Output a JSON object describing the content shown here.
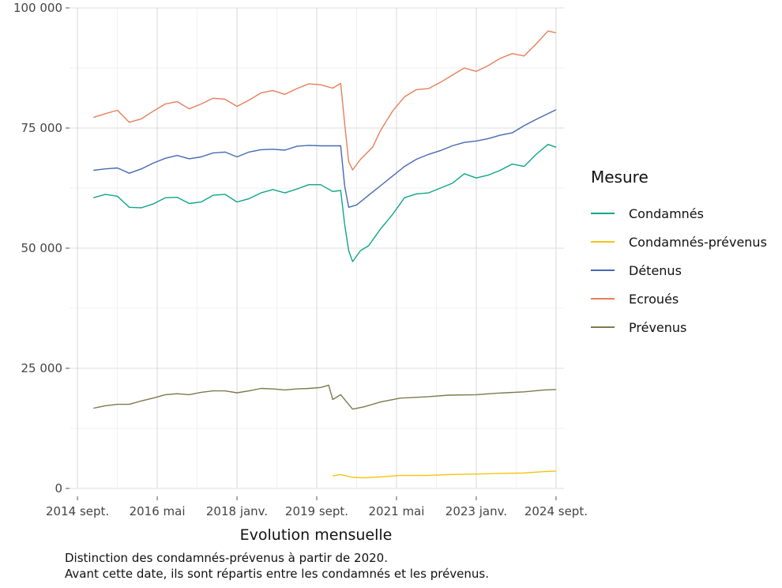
{
  "chart_data": {
    "type": "line",
    "xlabel": "Evolution mensuelle",
    "x_ticks": [
      "2014 sept.",
      "2016 mai",
      "2018 janv.",
      "2019 sept.",
      "2021 mai",
      "2023 janv.",
      "2024 sept."
    ],
    "y_ticks": [
      "0",
      "25 000",
      "50 000",
      "75 000",
      "100 000"
    ],
    "ylim": [
      0,
      100000
    ],
    "x_range": [
      "2014-09",
      "2024-09"
    ],
    "grid": true,
    "legend_title": "Mesure",
    "legend_position": "right",
    "series": [
      {
        "name": "Condamnés",
        "color": "#0fa58a",
        "points": [
          [
            "2015-01",
            60500
          ],
          [
            "2015-04",
            61200
          ],
          [
            "2015-07",
            60800
          ],
          [
            "2015-10",
            58500
          ],
          [
            "2016-01",
            58400
          ],
          [
            "2016-04",
            59200
          ],
          [
            "2016-07",
            60500
          ],
          [
            "2016-10",
            60600
          ],
          [
            "2017-01",
            59300
          ],
          [
            "2017-04",
            59600
          ],
          [
            "2017-07",
            61000
          ],
          [
            "2017-10",
            61200
          ],
          [
            "2018-01",
            59600
          ],
          [
            "2018-04",
            60300
          ],
          [
            "2018-07",
            61500
          ],
          [
            "2018-10",
            62200
          ],
          [
            "2019-01",
            61500
          ],
          [
            "2019-04",
            62300
          ],
          [
            "2019-07",
            63200
          ],
          [
            "2019-10",
            63200
          ],
          [
            "2020-01",
            61800
          ],
          [
            "2020-03",
            62000
          ],
          [
            "2020-04",
            55000
          ],
          [
            "2020-05",
            49500
          ],
          [
            "2020-06",
            47200
          ],
          [
            "2020-08",
            49500
          ],
          [
            "2020-10",
            50500
          ],
          [
            "2021-01",
            54000
          ],
          [
            "2021-04",
            57000
          ],
          [
            "2021-07",
            60500
          ],
          [
            "2021-10",
            61300
          ],
          [
            "2022-01",
            61500
          ],
          [
            "2022-04",
            62500
          ],
          [
            "2022-07",
            63500
          ],
          [
            "2022-10",
            65500
          ],
          [
            "2023-01",
            64600
          ],
          [
            "2023-04",
            65200
          ],
          [
            "2023-07",
            66200
          ],
          [
            "2023-10",
            67500
          ],
          [
            "2024-01",
            67000
          ],
          [
            "2024-04",
            69500
          ],
          [
            "2024-07",
            71600
          ],
          [
            "2024-09",
            71000
          ]
        ]
      },
      {
        "name": "Condamnés-prévenus",
        "color": "#f6c40e",
        "points": [
          [
            "2020-01",
            2600
          ],
          [
            "2020-03",
            2900
          ],
          [
            "2020-06",
            2300
          ],
          [
            "2020-09",
            2200
          ],
          [
            "2021-01",
            2400
          ],
          [
            "2021-06",
            2700
          ],
          [
            "2022-01",
            2700
          ],
          [
            "2022-06",
            2900
          ],
          [
            "2023-01",
            3000
          ],
          [
            "2023-06",
            3100
          ],
          [
            "2024-01",
            3200
          ],
          [
            "2024-06",
            3500
          ],
          [
            "2024-09",
            3600
          ]
        ]
      },
      {
        "name": "Détenus",
        "color": "#4569b2",
        "points": [
          [
            "2015-01",
            66200
          ],
          [
            "2015-04",
            66500
          ],
          [
            "2015-07",
            66700
          ],
          [
            "2015-10",
            65600
          ],
          [
            "2016-01",
            66500
          ],
          [
            "2016-04",
            67700
          ],
          [
            "2016-07",
            68700
          ],
          [
            "2016-10",
            69300
          ],
          [
            "2017-01",
            68600
          ],
          [
            "2017-04",
            69000
          ],
          [
            "2017-07",
            69800
          ],
          [
            "2017-10",
            70000
          ],
          [
            "2018-01",
            69000
          ],
          [
            "2018-04",
            70000
          ],
          [
            "2018-07",
            70500
          ],
          [
            "2018-10",
            70600
          ],
          [
            "2019-01",
            70400
          ],
          [
            "2019-04",
            71200
          ],
          [
            "2019-07",
            71400
          ],
          [
            "2019-10",
            71300
          ],
          [
            "2020-01",
            71300
          ],
          [
            "2020-03",
            71300
          ],
          [
            "2020-04",
            63000
          ],
          [
            "2020-05",
            58500
          ],
          [
            "2020-07",
            59000
          ],
          [
            "2020-10",
            61000
          ],
          [
            "2021-01",
            63000
          ],
          [
            "2021-04",
            65000
          ],
          [
            "2021-07",
            67000
          ],
          [
            "2021-10",
            68500
          ],
          [
            "2022-01",
            69500
          ],
          [
            "2022-04",
            70300
          ],
          [
            "2022-07",
            71300
          ],
          [
            "2022-10",
            72000
          ],
          [
            "2023-01",
            72300
          ],
          [
            "2023-04",
            72800
          ],
          [
            "2023-07",
            73500
          ],
          [
            "2023-10",
            74000
          ],
          [
            "2024-01",
            75500
          ],
          [
            "2024-04",
            76800
          ],
          [
            "2024-07",
            78000
          ],
          [
            "2024-09",
            78800
          ]
        ]
      },
      {
        "name": "Ecroués",
        "color": "#e67f5a",
        "points": [
          [
            "2015-01",
            77200
          ],
          [
            "2015-04",
            78000
          ],
          [
            "2015-07",
            78700
          ],
          [
            "2015-10",
            76200
          ],
          [
            "2016-01",
            76900
          ],
          [
            "2016-04",
            78500
          ],
          [
            "2016-07",
            80000
          ],
          [
            "2016-10",
            80500
          ],
          [
            "2017-01",
            79000
          ],
          [
            "2017-04",
            80000
          ],
          [
            "2017-07",
            81200
          ],
          [
            "2017-10",
            81000
          ],
          [
            "2018-01",
            79500
          ],
          [
            "2018-04",
            80800
          ],
          [
            "2018-07",
            82300
          ],
          [
            "2018-10",
            82800
          ],
          [
            "2019-01",
            82000
          ],
          [
            "2019-04",
            83200
          ],
          [
            "2019-07",
            84200
          ],
          [
            "2019-10",
            84000
          ],
          [
            "2020-01",
            83300
          ],
          [
            "2020-03",
            84300
          ],
          [
            "2020-04",
            76000
          ],
          [
            "2020-05",
            68000
          ],
          [
            "2020-06",
            66300
          ],
          [
            "2020-08",
            68500
          ],
          [
            "2020-11",
            71000
          ],
          [
            "2021-01",
            74500
          ],
          [
            "2021-04",
            78500
          ],
          [
            "2021-07",
            81500
          ],
          [
            "2021-10",
            83000
          ],
          [
            "2022-01",
            83200
          ],
          [
            "2022-04",
            84500
          ],
          [
            "2022-07",
            86000
          ],
          [
            "2022-10",
            87500
          ],
          [
            "2023-01",
            86800
          ],
          [
            "2023-04",
            88000
          ],
          [
            "2023-07",
            89500
          ],
          [
            "2023-10",
            90500
          ],
          [
            "2024-01",
            90000
          ],
          [
            "2024-04",
            92500
          ],
          [
            "2024-07",
            95200
          ],
          [
            "2024-09",
            94800
          ]
        ]
      },
      {
        "name": "Prévenus",
        "color": "#7d7a4c",
        "points": [
          [
            "2015-01",
            16700
          ],
          [
            "2015-04",
            17200
          ],
          [
            "2015-07",
            17500
          ],
          [
            "2015-10",
            17500
          ],
          [
            "2016-01",
            18200
          ],
          [
            "2016-04",
            18800
          ],
          [
            "2016-07",
            19500
          ],
          [
            "2016-10",
            19700
          ],
          [
            "2017-01",
            19500
          ],
          [
            "2017-04",
            20000
          ],
          [
            "2017-07",
            20300
          ],
          [
            "2017-10",
            20300
          ],
          [
            "2018-01",
            19900
          ],
          [
            "2018-04",
            20300
          ],
          [
            "2018-07",
            20800
          ],
          [
            "2018-10",
            20700
          ],
          [
            "2019-01",
            20500
          ],
          [
            "2019-04",
            20700
          ],
          [
            "2019-07",
            20800
          ],
          [
            "2019-10",
            21000
          ],
          [
            "2019-12",
            21500
          ],
          [
            "2020-01",
            18500
          ],
          [
            "2020-03",
            19500
          ],
          [
            "2020-06",
            16500
          ],
          [
            "2020-09",
            17000
          ],
          [
            "2021-01",
            18000
          ],
          [
            "2021-06",
            18800
          ],
          [
            "2022-01",
            19100
          ],
          [
            "2022-06",
            19400
          ],
          [
            "2023-01",
            19500
          ],
          [
            "2023-06",
            19800
          ],
          [
            "2024-01",
            20100
          ],
          [
            "2024-06",
            20500
          ],
          [
            "2024-09",
            20600
          ]
        ]
      }
    ]
  },
  "caption": {
    "line1": "Distinction des condamnés-prévenus à partir de 2020.",
    "line2": "Avant cette date, ils sont répartis entre les condamnés et les prévenus."
  }
}
